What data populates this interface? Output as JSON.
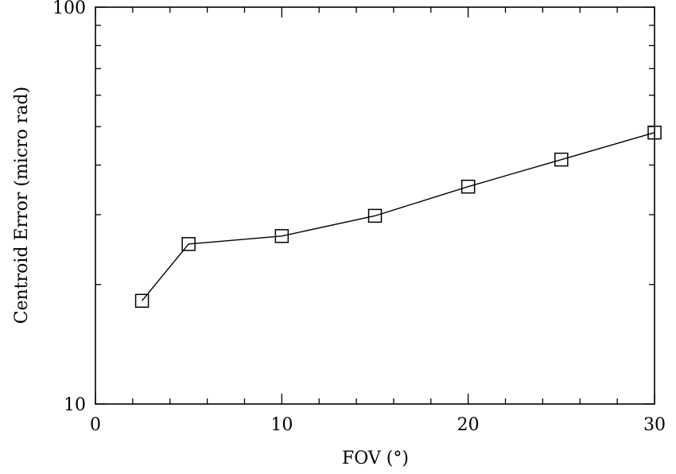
{
  "chart_data": {
    "type": "line",
    "title": "",
    "xlabel": "FOV (°)",
    "ylabel": "Centroid Error (micro rad)",
    "xlim": [
      0,
      30
    ],
    "ylim": [
      10,
      100
    ],
    "yscale": "log",
    "grid": false,
    "legend": "none",
    "x_ticks": [
      0,
      10,
      20,
      30
    ],
    "x_tick_labels": [
      "0",
      "10",
      "20",
      "30"
    ],
    "x_minor_step": 2,
    "y_tick_labels": [
      "10",
      "100"
    ],
    "y_ticks": [
      10,
      100
    ],
    "marker": "open-square",
    "line_color": "#000000",
    "series": [
      {
        "x": [
          2.5,
          5,
          10,
          15,
          20,
          25,
          30
        ],
        "values": [
          18.2,
          25.3,
          26.5,
          29.8,
          35.3,
          41.3,
          48.3
        ]
      }
    ]
  }
}
